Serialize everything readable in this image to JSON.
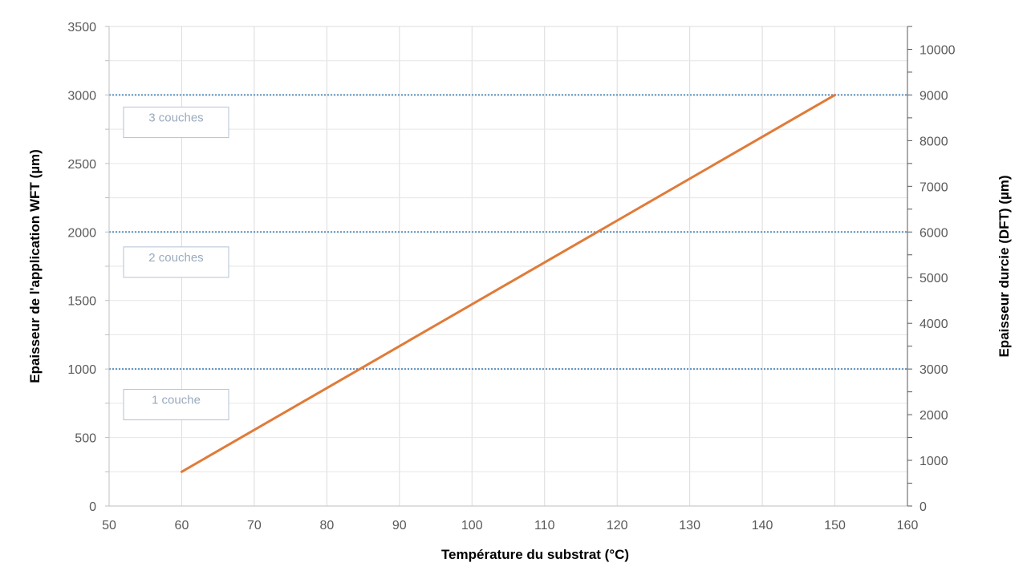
{
  "chart_data": {
    "type": "line",
    "xlabel": "Température du substrat (°C)",
    "ylabel": "Epaisseur de l'application WFT (µm)",
    "y2label": "Epaisseur durcie (DFT) (µm)",
    "xlim": [
      50,
      160
    ],
    "ylim": [
      0,
      3500
    ],
    "y2lim": [
      0,
      10500
    ],
    "x_ticks": [
      50,
      60,
      70,
      80,
      90,
      100,
      110,
      120,
      130,
      140,
      150,
      160
    ],
    "y_ticks": [
      0,
      500,
      1000,
      1500,
      2000,
      2500,
      3000,
      3500
    ],
    "y2_ticks": [
      0,
      1000,
      2000,
      3000,
      4000,
      5000,
      6000,
      7000,
      8000,
      9000,
      10000
    ],
    "grid": true,
    "series": [
      {
        "x": [
          60,
          150
        ],
        "y": [
          250,
          3000
        ],
        "color": "#e07b39"
      }
    ],
    "reference_lines": [
      {
        "y": 1000,
        "color": "#5b8fbf",
        "style": "dotted"
      },
      {
        "y": 2000,
        "color": "#5b8fbf",
        "style": "dotted"
      },
      {
        "y": 3000,
        "color": "#5b8fbf",
        "style": "dotted"
      }
    ],
    "annotations": [
      {
        "text": "3 couches",
        "y": 2800
      },
      {
        "text": "2 couches",
        "y": 1780
      },
      {
        "text": "1 couche",
        "y": 740
      }
    ]
  }
}
